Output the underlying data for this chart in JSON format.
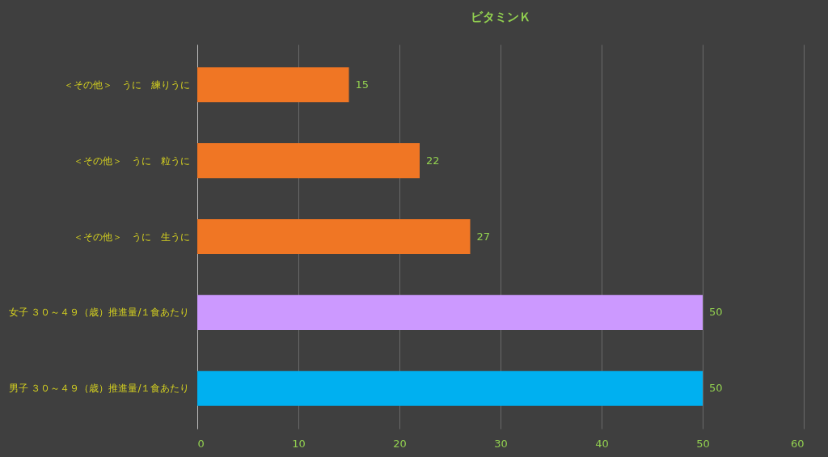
{
  "chart_data": {
    "type": "bar",
    "orientation": "horizontal",
    "title": "ビタミンＫ",
    "categories": [
      "＜その他＞　うに　練りうに",
      "＜その他＞　うに　粒うに",
      "＜その他＞　うに　生うに",
      "女子 ３０～４９（歳）推進量/１食あたり",
      "男子 ３０～４９（歳）推進量/１食あたり"
    ],
    "values": [
      15,
      22,
      27,
      50,
      50
    ],
    "colors": [
      "#f07624",
      "#f07624",
      "#f07624",
      "#cc99ff",
      "#00b0f0"
    ],
    "xlim": [
      0,
      60
    ],
    "xticks": [
      0,
      10,
      20,
      30,
      40,
      50,
      60
    ],
    "grid": "x",
    "data_labels": true
  }
}
